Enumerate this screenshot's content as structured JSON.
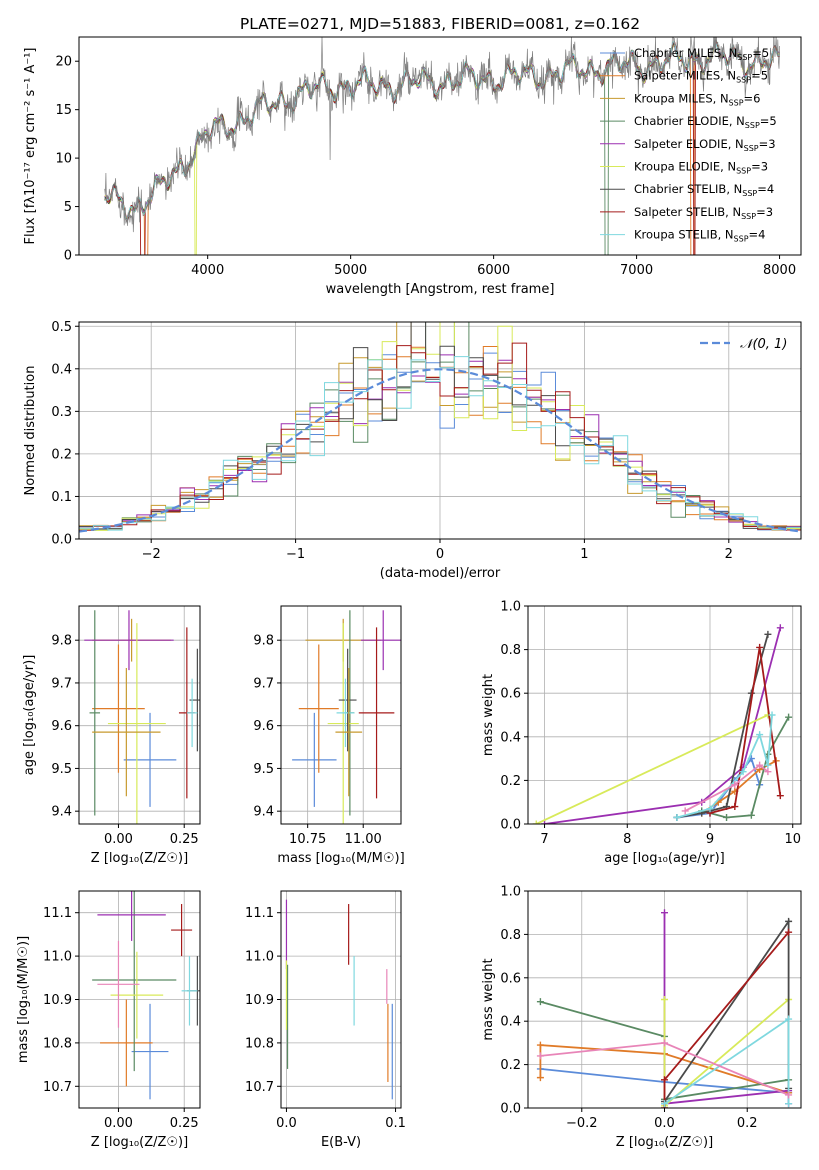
{
  "title": "PLATE=0271, MJD=51883, FIBERID=0081, z=0.162",
  "models": [
    {
      "name": "Chabrier MILES",
      "nssp": "5",
      "color": "#5b8bd9"
    },
    {
      "name": "Salpeter MILES",
      "nssp": "5",
      "color": "#e07b28"
    },
    {
      "name": "Kroupa MILES",
      "nssp": "6",
      "color": "#c79a2e"
    },
    {
      "name": "Chabrier ELODIE",
      "nssp": "5",
      "color": "#5a8a63"
    },
    {
      "name": "Salpeter ELODIE",
      "nssp": "3",
      "color": "#9b2fb1"
    },
    {
      "name": "Kroupa ELODIE",
      "nssp": "3",
      "color": "#d8ea5a"
    },
    {
      "name": "Chabrier STELIB",
      "nssp": "4",
      "color": "#4a4a4a"
    },
    {
      "name": "Salpeter STELIB",
      "nssp": "3",
      "color": "#a51b1b"
    },
    {
      "name": "Kroupa STELIB",
      "nssp": "4",
      "color": "#7fd8df"
    }
  ],
  "chart_data": [
    {
      "id": "spectrum",
      "type": "line",
      "xlabel": "wavelength [Angstrom, rest frame]",
      "ylabel": "Flux [fλ10⁻¹⁷ erg cm⁻² s⁻¹ A⁻¹]",
      "xlim": [
        3100,
        8150
      ],
      "ylim": [
        0,
        22.5
      ],
      "xticks": [
        4000,
        5000,
        6000,
        7000,
        8000
      ],
      "yticks": [
        0,
        5,
        10,
        15,
        20
      ],
      "x_start": 3280,
      "x_end": 8000,
      "continuum": [
        [
          3280,
          5.8
        ],
        [
          3500,
          5.0
        ],
        [
          3650,
          6.5
        ],
        [
          3800,
          9.0
        ],
        [
          4000,
          12.5
        ],
        [
          4300,
          14.5
        ],
        [
          4600,
          16.5
        ],
        [
          4900,
          17.5
        ],
        [
          5200,
          17.5
        ],
        [
          5500,
          17.8
        ],
        [
          5900,
          18.2
        ],
        [
          6300,
          18.5
        ],
        [
          6700,
          19.3
        ],
        [
          7100,
          19.7
        ],
        [
          7500,
          20.5
        ],
        [
          8000,
          19.8
        ]
      ],
      "drops": [
        {
          "x0": 3530,
          "x1": 3560,
          "model": 7
        },
        {
          "x0": 3560,
          "x1": 3580,
          "model": 1
        },
        {
          "x0": 3910,
          "x1": 3920,
          "model": 5
        },
        {
          "x0": 6780,
          "x1": 6800,
          "model": 3
        },
        {
          "x0": 7380,
          "x1": 7400,
          "model": 1
        },
        {
          "x0": 7400,
          "x1": 7410,
          "model": 7
        }
      ],
      "legend_position": "upper right"
    },
    {
      "id": "residuals",
      "type": "histogram",
      "xlabel": "(data-model)/error",
      "ylabel": "Normed distribution",
      "xlim": [
        -2.5,
        2.5
      ],
      "ylim": [
        0,
        0.51
      ],
      "xticks": [
        -2,
        -1,
        0,
        1,
        2
      ],
      "yticks": [
        0.0,
        0.1,
        0.2,
        0.3,
        0.4,
        0.5
      ],
      "bin_width": 0.1,
      "reference_label": "𝒩(0, 1)",
      "reference_color": "#5b8bd9",
      "legend_position": "upper right"
    },
    {
      "id": "age_vs_z",
      "type": "errorbar",
      "xlabel": "Z [log₁₀(Z/Z☉)]",
      "ylabel": "age  [log₁₀(age/yr)]",
      "xlim": [
        -0.15,
        0.31
      ],
      "ylim": [
        9.37,
        9.88
      ],
      "xticks": [
        0.0,
        0.25
      ],
      "xtick_labels": [
        "0.00",
        "0.25"
      ],
      "yticks": [
        9.4,
        9.5,
        9.6,
        9.7,
        9.8
      ],
      "points": [
        {
          "model": 0,
          "x": 0.12,
          "y": 9.52,
          "xerr": 0.1,
          "yerr": 0.11
        },
        {
          "model": 1,
          "x": 0.0,
          "y": 9.64,
          "xerr": 0.1,
          "yerr": 0.15
        },
        {
          "model": 2,
          "x": 0.05,
          "y": 9.8,
          "xerr": 0.15,
          "yerr": 0.05
        },
        {
          "model": 3,
          "x": -0.09,
          "y": 9.63,
          "xerr": 0.02,
          "yerr": 0.24
        },
        {
          "model": 4,
          "x": 0.04,
          "y": 9.8,
          "xerr": 0.17,
          "yerr": 0.07
        },
        {
          "model": 5,
          "x": 0.07,
          "y": 9.605,
          "xerr": 0.11,
          "yerr": 0.235
        },
        {
          "model": 6,
          "x": 0.3,
          "y": 9.66,
          "xerr": 0.03,
          "yerr": 0.12
        },
        {
          "model": 7,
          "x": 0.26,
          "y": 9.63,
          "xerr": 0.03,
          "yerr": 0.2
        },
        {
          "model": 8,
          "x": 0.28,
          "y": 9.63,
          "xerr": 0.02,
          "yerr": 0.08
        },
        {
          "model": 2,
          "x": 0.03,
          "y": 9.585,
          "xerr": 0.13,
          "yerr": 0.15
        }
      ]
    },
    {
      "id": "age_vs_mass",
      "type": "errorbar",
      "xlabel": "mass [log₁₀(M/M☉)]",
      "ylabel": "",
      "xlim": [
        10.63,
        11.17
      ],
      "ylim": [
        9.37,
        9.88
      ],
      "xticks": [
        10.75,
        11.0
      ],
      "xtick_labels": [
        "10.75",
        "11.00"
      ],
      "yticks": [
        9.4,
        9.5,
        9.6,
        9.7,
        9.8
      ],
      "points": [
        {
          "model": 0,
          "x": 10.78,
          "y": 9.52,
          "xerr": 0.1,
          "yerr": 0.11
        },
        {
          "model": 1,
          "x": 10.8,
          "y": 9.64,
          "xerr": 0.09,
          "yerr": 0.15
        },
        {
          "model": 2,
          "x": 10.91,
          "y": 9.8,
          "xerr": 0.17,
          "yerr": 0.05
        },
        {
          "model": 3,
          "x": 10.94,
          "y": 9.63,
          "xerr": 0.02,
          "yerr": 0.24
        },
        {
          "model": 4,
          "x": 11.09,
          "y": 9.8,
          "xerr": 0.1,
          "yerr": 0.07
        },
        {
          "model": 5,
          "x": 10.91,
          "y": 9.605,
          "xerr": 0.07,
          "yerr": 0.235
        },
        {
          "model": 6,
          "x": 10.93,
          "y": 9.66,
          "xerr": 0.04,
          "yerr": 0.12
        },
        {
          "model": 7,
          "x": 11.06,
          "y": 9.63,
          "xerr": 0.08,
          "yerr": 0.2
        },
        {
          "model": 8,
          "x": 10.92,
          "y": 9.63,
          "xerr": 0.04,
          "yerr": 0.08
        },
        {
          "model": 2,
          "x": 10.935,
          "y": 9.585,
          "xerr": 0.06,
          "yerr": 0.15
        }
      ]
    },
    {
      "id": "weight_vs_age",
      "type": "line",
      "xlabel": "age  [log₁₀(age/yr)]",
      "ylabel": "mass weight",
      "xlim": [
        6.8,
        10.1
      ],
      "ylim": [
        0,
        1.0
      ],
      "xticks": [
        7,
        8,
        9,
        10
      ],
      "yticks": [
        0.0,
        0.2,
        0.4,
        0.6,
        0.8,
        1.0
      ],
      "series": [
        {
          "model": 0,
          "x": [
            8.6,
            9.0,
            9.3,
            9.5,
            9.6
          ],
          "y": [
            0.03,
            0.05,
            0.2,
            0.3,
            0.18
          ]
        },
        {
          "model": 1,
          "x": [
            8.9,
            9.1,
            9.3,
            9.6,
            9.8
          ],
          "y": [
            0.05,
            0.1,
            0.15,
            0.25,
            0.29
          ]
        },
        {
          "model": 3,
          "x": [
            8.9,
            9.2,
            9.5,
            9.7,
            9.95
          ],
          "y": [
            0.06,
            0.03,
            0.04,
            0.32,
            0.49
          ]
        },
        {
          "model": 4,
          "x": [
            7.0,
            8.9,
            9.4,
            9.85
          ],
          "y": [
            0.0,
            0.1,
            0.26,
            0.9
          ]
        },
        {
          "model": 5,
          "x": [
            6.9,
            9.7
          ],
          "y": [
            0.0,
            0.5
          ]
        },
        {
          "model": 6,
          "x": [
            8.6,
            8.9,
            9.2,
            9.5,
            9.7
          ],
          "y": [
            0.03,
            0.05,
            0.08,
            0.6,
            0.87
          ]
        },
        {
          "model": 7,
          "x": [
            9.0,
            9.3,
            9.6,
            9.85
          ],
          "y": [
            0.05,
            0.08,
            0.81,
            0.13
          ]
        },
        {
          "model": 8,
          "x": [
            8.6,
            9.0,
            9.4,
            9.6,
            9.7,
            9.75
          ],
          "y": [
            0.03,
            0.07,
            0.24,
            0.41,
            0.27,
            0.5
          ]
        },
        {
          "model": 9,
          "x": [
            8.7,
            9.3,
            9.6,
            9.7
          ],
          "y": [
            0.06,
            0.18,
            0.27,
            0.24
          ]
        }
      ]
    },
    {
      "id": "mass_vs_z",
      "type": "errorbar",
      "xlabel": "Z [log₁₀(Z/Z☉)]",
      "ylabel": "mass [log₁₀(M/M☉)]",
      "xlim": [
        -0.15,
        0.31
      ],
      "ylim": [
        10.65,
        11.15
      ],
      "xticks": [
        0.0,
        0.25
      ],
      "xtick_labels": [
        "0.00",
        "0.25"
      ],
      "yticks": [
        10.7,
        10.8,
        10.9,
        11.0,
        11.1
      ],
      "points": [
        {
          "model": 0,
          "x": 0.12,
          "y": 10.78,
          "xerr": 0.07,
          "yerr": 0.11
        },
        {
          "model": 1,
          "x": 0.03,
          "y": 10.8,
          "xerr": 0.1,
          "yerr": 0.1
        },
        {
          "model": 3,
          "x": 0.06,
          "y": 10.945,
          "xerr": 0.16,
          "yerr": 0.21
        },
        {
          "model": 4,
          "x": 0.05,
          "y": 11.095,
          "xerr": 0.13,
          "yerr": 0.06
        },
        {
          "model": 5,
          "x": 0.07,
          "y": 10.91,
          "xerr": 0.1,
          "yerr": 0.1
        },
        {
          "model": 6,
          "x": 0.3,
          "y": 10.92,
          "xerr": 0.04,
          "yerr": 0.08
        },
        {
          "model": 7,
          "x": 0.24,
          "y": 11.06,
          "xerr": 0.04,
          "yerr": 0.06
        },
        {
          "model": 8,
          "x": 0.27,
          "y": 10.92,
          "xerr": 0.03,
          "yerr": 0.08
        },
        {
          "model": 9,
          "x": 0.0,
          "y": 10.935,
          "xerr": 0.08,
          "yerr": 0.1
        }
      ]
    },
    {
      "id": "mass_vs_ebv",
      "type": "errorbar",
      "xlabel": "E(B-V)",
      "ylabel": "",
      "xlim": [
        -0.005,
        0.105
      ],
      "ylim": [
        10.65,
        11.15
      ],
      "xticks": [
        0.0,
        0.1
      ],
      "xtick_labels": [
        "0.0",
        "0.1"
      ],
      "yticks": [
        10.7,
        10.8,
        10.9,
        11.0,
        11.1
      ],
      "points": [
        {
          "model": 4,
          "x": 0.0,
          "y": 11.05,
          "yerr": 0.08
        },
        {
          "model": 3,
          "x": 0.001,
          "y": 10.86,
          "yerr": 0.12
        },
        {
          "model": 5,
          "x": 0.0,
          "y": 10.91,
          "yerr": 0.08
        },
        {
          "model": 7,
          "x": 0.057,
          "y": 11.05,
          "yerr": 0.07
        },
        {
          "model": 8,
          "x": 0.062,
          "y": 10.92,
          "yerr": 0.08
        },
        {
          "model": 1,
          "x": 0.093,
          "y": 10.8,
          "yerr": 0.09
        },
        {
          "model": 9,
          "x": 0.092,
          "y": 10.93,
          "yerr": 0.04
        },
        {
          "model": 0,
          "x": 0.097,
          "y": 10.78,
          "yerr": 0.11
        }
      ]
    },
    {
      "id": "weight_vs_z",
      "type": "line",
      "xlabel": "Z [log₁₀(Z/Z☉)]",
      "ylabel": "mass weight",
      "xlim": [
        -0.33,
        0.33
      ],
      "ylim": [
        0,
        1.0
      ],
      "xticks": [
        -0.2,
        0.0,
        0.2
      ],
      "yticks": [
        0.0,
        0.2,
        0.4,
        0.6,
        0.8,
        1.0
      ],
      "series": [
        {
          "model": 0,
          "x": [
            -0.3,
            0.0,
            0.3
          ],
          "y": [
            0.18,
            0.12,
            0.07
          ]
        },
        {
          "model": 1,
          "x": [
            -0.3,
            -0.3,
            0.0,
            0.3
          ],
          "y": [
            0.14,
            0.29,
            0.25,
            0.07
          ]
        },
        {
          "model": 3,
          "x": [
            -0.3,
            0.0,
            0.0,
            0.3
          ],
          "y": [
            0.49,
            0.33,
            0.04,
            0.13
          ]
        },
        {
          "model": 4,
          "x": [
            0.0,
            0.0,
            0.3,
            0.3
          ],
          "y": [
            0.9,
            0.02,
            0.08,
            0.02
          ]
        },
        {
          "model": 5,
          "x": [
            0.0,
            0.0,
            0.3
          ],
          "y": [
            0.5,
            0.01,
            0.5
          ]
        },
        {
          "model": 6,
          "x": [
            0.0,
            0.3,
            0.3
          ],
          "y": [
            0.03,
            0.86,
            0.09
          ]
        },
        {
          "model": 7,
          "x": [
            0.0,
            0.0,
            0.3
          ],
          "y": [
            0.0,
            0.13,
            0.81
          ]
        },
        {
          "model": 8,
          "x": [
            0.0,
            0.3,
            0.3
          ],
          "y": [
            0.02,
            0.41,
            0.02
          ]
        },
        {
          "model": 9,
          "x": [
            -0.3,
            0.0,
            0.3
          ],
          "y": [
            0.24,
            0.3,
            0.06
          ]
        }
      ]
    }
  ]
}
